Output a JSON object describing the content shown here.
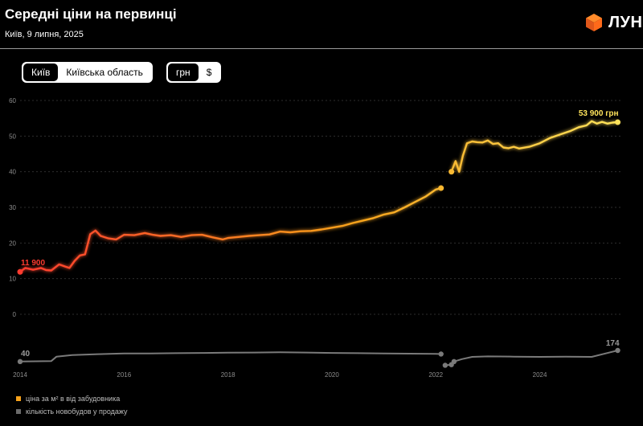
{
  "header": {
    "title": "Середні ціни на первинці",
    "subtitle": "Київ, 9 липня, 2025",
    "logo_text": "ЛУН"
  },
  "controls": {
    "region": {
      "options": [
        "Київ",
        "Київська область"
      ],
      "selected": "Київ"
    },
    "currency": {
      "options": [
        "грн",
        "$"
      ],
      "selected": "грн"
    }
  },
  "legend": [
    {
      "label": "ціна за м² в від забудовника",
      "color": "#f7a21b"
    },
    {
      "label": "кількість новобудов у продажу",
      "color": "#6b6b6b"
    }
  ],
  "chart_data": {
    "type": "line",
    "y_ticks": [
      "0",
      "10",
      "20",
      "30",
      "40",
      "50",
      "60"
    ],
    "ylim": [
      0,
      60
    ],
    "x_ticks": [
      "2014",
      "2016",
      "2018",
      "2020",
      "2022",
      "2024"
    ],
    "xlim": [
      2014.0,
      2025.6
    ],
    "grid": true,
    "colors": {
      "start": "#ff3b2f",
      "mid": "#f7a21b",
      "end": "#ffe45c",
      "count": "#7a7a7a"
    },
    "series": [
      {
        "label_key": "price",
        "segments": [
          {
            "x": [
              2014.0,
              2014.1,
              2014.25,
              2014.4,
              2014.5,
              2014.6,
              2014.75,
              2014.85,
              2014.95,
              2015.05,
              2015.15,
              2015.25,
              2015.35,
              2015.45,
              2015.55,
              2015.7,
              2015.85,
              2016.0,
              2016.2,
              2016.4,
              2016.55,
              2016.7,
              2016.9,
              2017.1,
              2017.3,
              2017.5,
              2017.7,
              2017.9,
              2018.0,
              2018.2,
              2018.4,
              2018.6,
              2018.8,
              2019.0,
              2019.2,
              2019.4,
              2019.6,
              2019.8,
              2020.0,
              2020.2,
              2020.4,
              2020.6,
              2020.8,
              2021.0,
              2021.2,
              2021.4,
              2021.6,
              2021.8,
              2022.0,
              2022.1
            ],
            "y": [
              11.9,
              13.0,
              12.5,
              13.0,
              12.4,
              12.3,
              14.0,
              13.5,
              13.0,
              15.0,
              16.5,
              16.8,
              22.5,
              23.5,
              22.0,
              21.3,
              21.0,
              22.3,
              22.2,
              22.8,
              22.3,
              22.0,
              22.2,
              21.7,
              22.2,
              22.3,
              21.6,
              21.0,
              21.4,
              21.7,
              22.0,
              22.2,
              22.4,
              23.2,
              23.0,
              23.3,
              23.4,
              23.8,
              24.3,
              24.8,
              25.6,
              26.3,
              27.0,
              28.0,
              28.6,
              30.0,
              31.5,
              33.0,
              35.0,
              35.4
            ]
          },
          {
            "x": [
              2022.3,
              2022.38,
              2022.45,
              2022.52,
              2022.6,
              2022.7,
              2022.8,
              2022.9,
              2023.0,
              2023.1,
              2023.2,
              2023.3,
              2023.4,
              2023.5,
              2023.6,
              2023.8,
              2024.0,
              2024.2,
              2024.4,
              2024.6,
              2024.75,
              2024.9,
              2025.0,
              2025.1,
              2025.2,
              2025.3,
              2025.4,
              2025.5
            ],
            "y": [
              40.0,
              43.0,
              40.0,
              44.5,
              48.0,
              48.5,
              48.3,
              48.2,
              48.8,
              47.8,
              48.0,
              46.8,
              46.6,
              47.0,
              46.5,
              47.0,
              48.0,
              49.5,
              50.5,
              51.5,
              52.5,
              53.0,
              54.2,
              53.5,
              54.0,
              53.5,
              53.8,
              53.9
            ]
          }
        ],
        "start_label": "11 900",
        "end_label": "53 900 грн"
      },
      {
        "label_key": "count",
        "segments": [
          {
            "x": [
              2014.0,
              2014.3,
              2014.6,
              2014.7,
              2015.0,
              2015.5,
              2016.0,
              2016.5,
              2017.0,
              2017.5,
              2018.0,
              2018.5,
              2019.0,
              2019.5,
              2020.0,
              2020.5,
              2021.0,
              2021.5,
              2022.0,
              2022.1
            ],
            "y": [
              40,
              42,
              44,
              80,
              92,
              100,
              105,
              106,
              108,
              110,
              112,
              113,
              115,
              113,
              110,
              108,
              106,
              104,
              102,
              101
            ]
          },
          {
            "x": [
              2022.18,
              2022.3
            ],
            "y": [
              10,
              15
            ]
          },
          {
            "x": [
              2022.35,
              2022.5,
              2022.7,
              2023.0,
              2023.5,
              2024.0,
              2024.5,
              2025.0,
              2025.5
            ],
            "y": [
              40,
              60,
              78,
              82,
              80,
              78,
              80,
              78,
              174
            ]
          }
        ],
        "start_label": "40",
        "end_label": "174"
      }
    ]
  }
}
